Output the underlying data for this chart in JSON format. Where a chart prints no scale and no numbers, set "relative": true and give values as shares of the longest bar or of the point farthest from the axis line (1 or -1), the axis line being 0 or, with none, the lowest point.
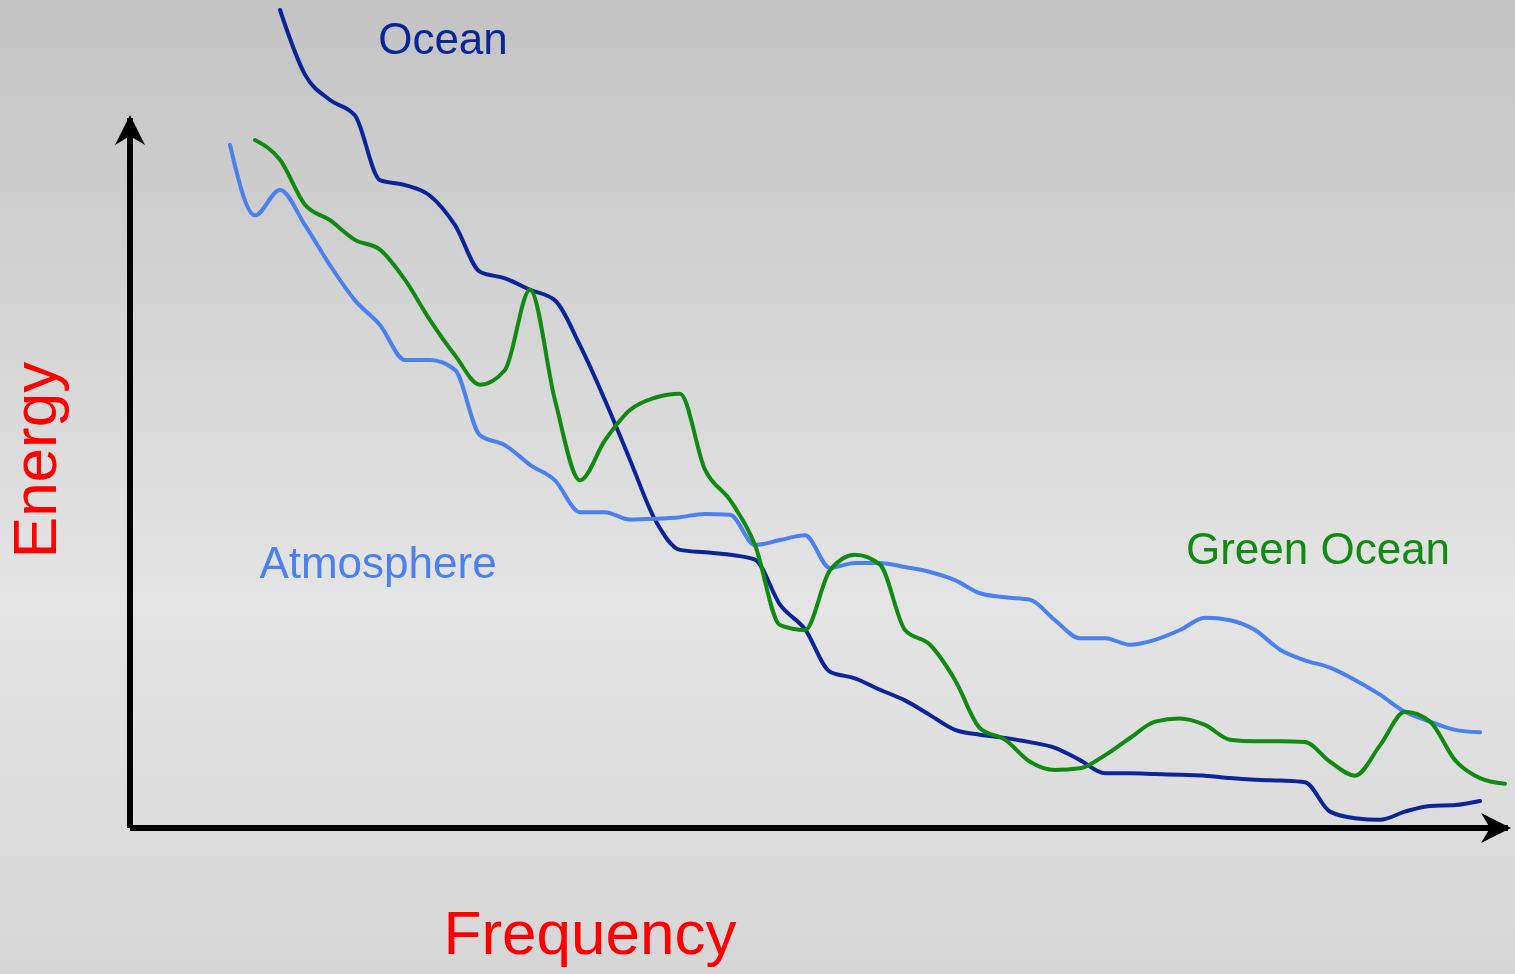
{
  "chart_data": {
    "type": "line",
    "relative": true,
    "xlabel": "Frequency",
    "ylabel": "Energy",
    "categories": [
      null,
      null,
      null,
      null,
      null,
      null,
      null,
      null,
      null,
      null,
      null,
      null,
      null,
      null,
      null,
      null,
      null,
      null,
      null,
      null,
      null,
      null,
      null,
      null,
      null,
      null,
      null,
      null,
      null,
      null,
      null,
      null,
      null,
      null,
      null,
      null,
      null,
      null,
      null,
      null,
      null,
      null,
      null,
      null,
      null,
      null,
      null,
      null,
      null,
      null,
      null,
      null,
      null,
      null,
      null,
      null
    ],
    "series": [
      {
        "name": "Ocean",
        "color": "#0d2499",
        "values": [
          null,
          null,
          null,
          null,
          null,
          null,
          1.0,
          0.921,
          0.89,
          0.871,
          0.792,
          0.786,
          0.773,
          0.737,
          0.68,
          0.672,
          0.658,
          0.645,
          0.59,
          0.523,
          0.45,
          0.377,
          0.34,
          0.337,
          0.334,
          0.328,
          0.273,
          0.243,
          0.191,
          0.183,
          0.169,
          0.156,
          0.138,
          0.12,
          0.114,
          0.11,
          0.105,
          0.098,
          0.083,
          0.067,
          0.067,
          0.066,
          0.065,
          0.064,
          0.061,
          0.059,
          0.058,
          0.056,
          0.02,
          0.012,
          0.01,
          0.02,
          0.027,
          0.028,
          0.033,
          null
        ]
      },
      {
        "name": "Atmosphere",
        "color": "#4a80f0",
        "values": [
          null,
          null,
          null,
          null,
          0.835,
          0.749,
          0.78,
          0.737,
          0.688,
          0.645,
          0.615,
          0.572,
          0.572,
          0.56,
          0.48,
          0.468,
          0.444,
          0.425,
          0.386,
          0.386,
          0.377,
          0.378,
          0.38,
          0.384,
          0.383,
          0.346,
          0.352,
          0.358,
          0.318,
          0.324,
          0.324,
          0.319,
          0.313,
          0.303,
          0.287,
          0.282,
          0.279,
          0.254,
          0.232,
          0.232,
          0.224,
          0.23,
          0.242,
          0.257,
          0.254,
          0.242,
          0.218,
          0.205,
          0.196,
          0.181,
          0.163,
          0.142,
          0.13,
          0.12,
          0.117,
          null
        ]
      },
      {
        "name": "Green Ocean",
        "color": "#118a11",
        "values": [
          null,
          null,
          null,
          null,
          null,
          0.841,
          0.817,
          0.762,
          0.743,
          0.719,
          0.707,
          0.67,
          0.621,
          0.578,
          0.542,
          0.56,
          0.658,
          0.523,
          0.425,
          0.474,
          0.511,
          0.526,
          0.531,
          0.438,
          0.401,
          0.346,
          0.248,
          0.242,
          0.315,
          0.334,
          0.322,
          0.242,
          0.224,
          0.181,
          0.122,
          0.108,
          0.081,
          0.071,
          0.073,
          0.089,
          0.11,
          0.13,
          0.134,
          0.126,
          0.108,
          0.106,
          0.106,
          0.105,
          0.081,
          0.064,
          0.101,
          0.142,
          0.13,
          0.083,
          0.061,
          0.054
        ]
      }
    ]
  }
}
